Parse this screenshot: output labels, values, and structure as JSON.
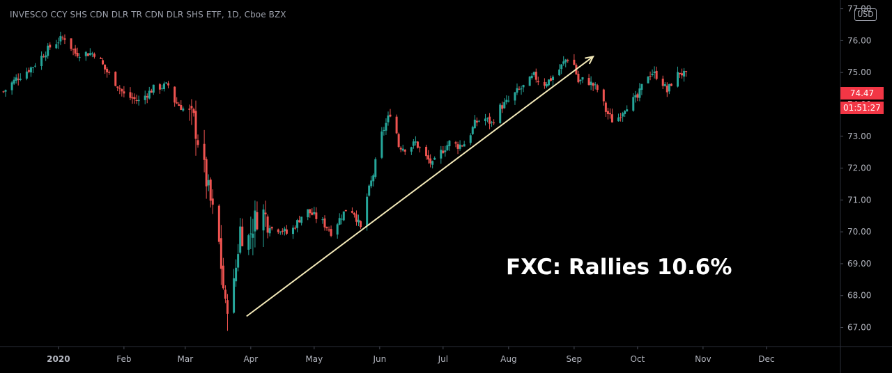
{
  "chart_title": "INVESCO CCY SHS CDN DLR TR CDN DLR SHS ETF, 1D, Cboe BZX",
  "currency": "USD",
  "annotation": "FXC: Rallies 10.6%",
  "last_price": "74.47",
  "countdown": "01:51:27",
  "colors": {
    "up": "#26a69a",
    "down": "#ef5350",
    "arrow": "#f3e9b8",
    "axis_text": "#b2b5be",
    "price_tag": "#f23645"
  },
  "chart_data": {
    "type": "candlestick",
    "title": "INVESCO CCY SHS CDN DLR TR CDN DLR SHS ETF, 1D, Cboe BZX",
    "ylim": [
      66.4,
      77.1
    ],
    "y_ticks": [
      "77.00",
      "76.00",
      "75.00",
      "74.00",
      "73.00",
      "72.00",
      "71.00",
      "70.00",
      "69.00",
      "68.00",
      "67.00"
    ],
    "x_ticks": [
      "2020",
      "Feb",
      "Mar",
      "Apr",
      "May",
      "Jun",
      "Jul",
      "Aug",
      "Sep",
      "Oct",
      "Nov",
      "Dec"
    ],
    "x_tick_days": [
      0,
      31,
      60,
      91,
      121,
      152,
      182,
      213,
      244,
      274,
      305,
      335
    ],
    "x_range_days": [
      -26,
      370
    ],
    "anchors": [
      [
        -26,
        74.4
      ],
      [
        -20,
        74.8
      ],
      [
        -12,
        75.2
      ],
      [
        -4,
        75.8
      ],
      [
        0,
        76.0
      ],
      [
        3,
        76.1
      ],
      [
        8,
        75.6
      ],
      [
        18,
        75.6
      ],
      [
        22,
        75.1
      ],
      [
        28,
        74.6
      ],
      [
        31,
        74.3
      ],
      [
        38,
        74.1
      ],
      [
        45,
        74.5
      ],
      [
        52,
        74.6
      ],
      [
        55,
        74.1
      ],
      [
        60,
        73.8
      ],
      [
        64,
        73.5
      ],
      [
        67,
        72.6
      ],
      [
        70,
        71.6
      ],
      [
        73,
        70.6
      ],
      [
        76,
        69.6
      ],
      [
        79,
        67.6
      ],
      [
        83,
        68.3
      ],
      [
        86,
        70.1
      ],
      [
        89,
        69.6
      ],
      [
        93,
        70.4
      ],
      [
        97,
        70.6
      ],
      [
        101,
        70.1
      ],
      [
        105,
        70.1
      ],
      [
        109,
        69.9
      ],
      [
        113,
        70.3
      ],
      [
        117,
        70.7
      ],
      [
        121,
        70.5
      ],
      [
        125,
        70.3
      ],
      [
        129,
        70.0
      ],
      [
        133,
        70.4
      ],
      [
        137,
        70.8
      ],
      [
        140,
        70.6
      ],
      [
        143,
        70.1
      ],
      [
        146,
        71.1
      ],
      [
        149,
        71.8
      ],
      [
        152,
        72.9
      ],
      [
        155,
        73.4
      ],
      [
        158,
        73.9
      ],
      [
        161,
        72.7
      ],
      [
        165,
        72.6
      ],
      [
        169,
        72.8
      ],
      [
        173,
        72.4
      ],
      [
        177,
        72.1
      ],
      [
        181,
        72.5
      ],
      [
        185,
        72.8
      ],
      [
        189,
        72.7
      ],
      [
        193,
        72.8
      ],
      [
        197,
        73.4
      ],
      [
        201,
        73.6
      ],
      [
        205,
        73.4
      ],
      [
        209,
        73.9
      ],
      [
        213,
        74.1
      ],
      [
        217,
        74.4
      ],
      [
        221,
        74.6
      ],
      [
        225,
        74.9
      ],
      [
        229,
        74.6
      ],
      [
        233,
        74.8
      ],
      [
        237,
        75.1
      ],
      [
        240,
        75.4
      ],
      [
        243,
        75.5
      ],
      [
        246,
        74.7
      ],
      [
        249,
        74.8
      ],
      [
        253,
        74.6
      ],
      [
        256,
        74.4
      ],
      [
        259,
        73.8
      ],
      [
        262,
        73.5
      ],
      [
        265,
        73.6
      ],
      [
        268,
        73.9
      ],
      [
        271,
        74.1
      ],
      [
        274,
        74.2
      ],
      [
        278,
        74.9
      ],
      [
        281,
        75.0
      ],
      [
        285,
        74.8
      ],
      [
        288,
        74.4
      ],
      [
        291,
        74.8
      ],
      [
        294,
        75.0
      ],
      [
        297,
        74.9
      ],
      [
        299,
        74.5
      ]
    ],
    "trend_arrow": {
      "from": [
        89,
        67.35
      ],
      "to": [
        253,
        75.5
      ]
    }
  }
}
